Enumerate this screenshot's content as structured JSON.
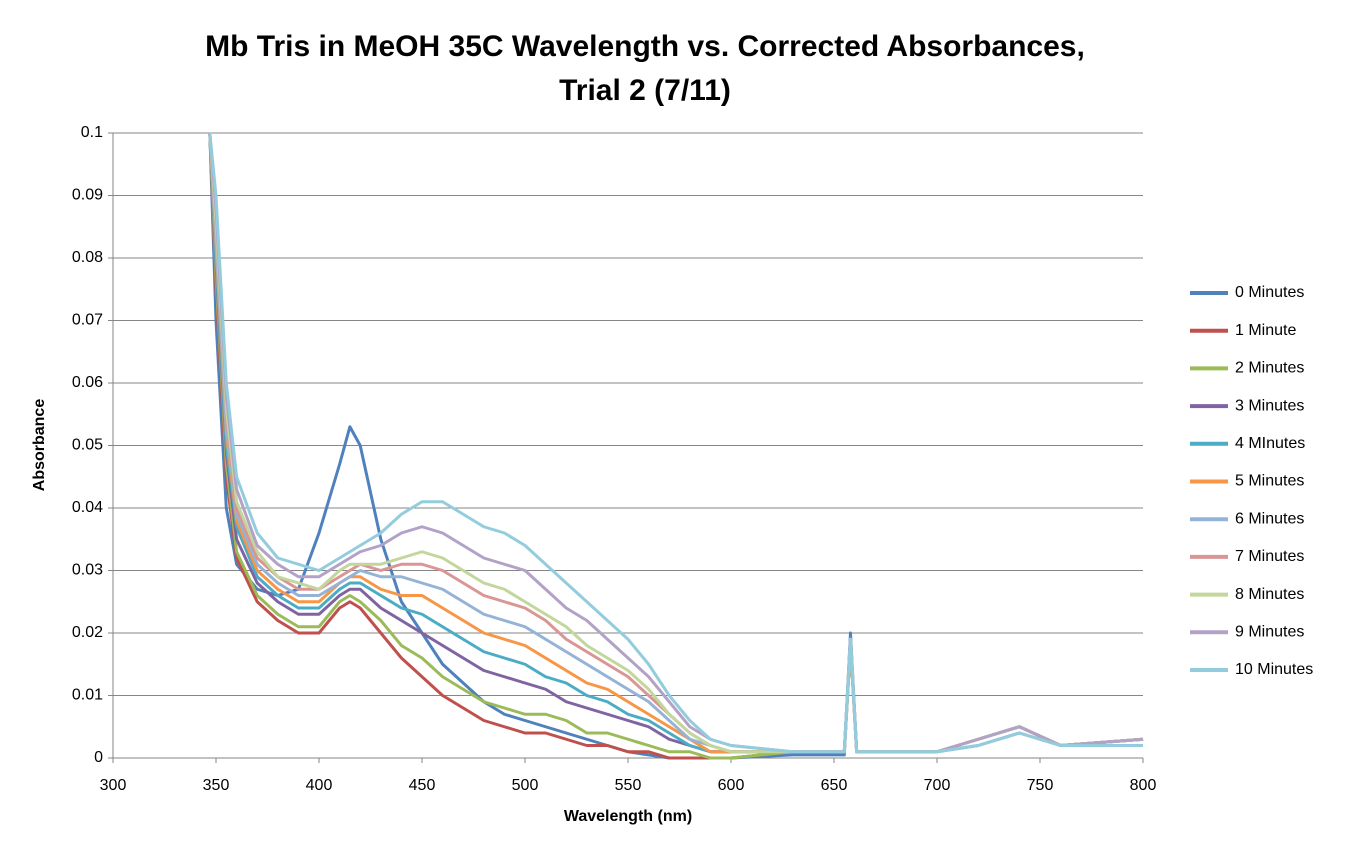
{
  "chart_data": {
    "type": "line",
    "title": "Mb Tris in MeOH 35C Wavelength vs. Corrected Absorbances,",
    "subtitle": "Trial 2 (7/11)",
    "x_label": "Wavelength (nm)",
    "y_label": "Absorbance",
    "xlim": [
      300,
      800
    ],
    "xticks": [
      300,
      350,
      400,
      450,
      500,
      550,
      600,
      650,
      700,
      750,
      800
    ],
    "ylim": [
      0,
      0.1
    ],
    "yticks": [
      0,
      0.01,
      0.02,
      0.03,
      0.04,
      0.05,
      0.06,
      0.07,
      0.08,
      0.09,
      0.1
    ],
    "grid": true,
    "legend": "right",
    "x": [
      347,
      350,
      355,
      360,
      370,
      380,
      390,
      400,
      410,
      415,
      420,
      430,
      440,
      450,
      460,
      470,
      480,
      490,
      500,
      510,
      520,
      530,
      540,
      550,
      560,
      570,
      580,
      590,
      600,
      630,
      655,
      658,
      661,
      700,
      720,
      740,
      760,
      800
    ],
    "series": [
      {
        "name": "0 Minutes",
        "color": "#4F81BD",
        "values": [
          0.1,
          0.07,
          0.04,
          0.031,
          0.027,
          0.026,
          0.027,
          0.036,
          0.047,
          0.053,
          0.05,
          0.035,
          0.025,
          0.02,
          0.015,
          0.012,
          0.009,
          0.007,
          0.006,
          0.005,
          0.004,
          0.003,
          0.002,
          0.001,
          0.0005,
          0,
          0,
          0,
          0,
          0.0005,
          0.0005,
          0.02,
          0.001,
          0.001,
          0.002,
          0.004,
          0.002,
          0.002
        ]
      },
      {
        "name": "1 Minute",
        "color": "#C0504D",
        "values": [
          0.1,
          0.075,
          0.045,
          0.032,
          0.025,
          0.022,
          0.02,
          0.02,
          0.024,
          0.025,
          0.024,
          0.02,
          0.016,
          0.013,
          0.01,
          0.008,
          0.006,
          0.005,
          0.004,
          0.004,
          0.003,
          0.002,
          0.002,
          0.001,
          0.001,
          0,
          0,
          0,
          0,
          0.001,
          0.001,
          0.018,
          0.001,
          0.001,
          0.003,
          0.005,
          0.002,
          0.003
        ]
      },
      {
        "name": "2 Minutes",
        "color": "#9BBB59",
        "values": [
          0.1,
          0.077,
          0.047,
          0.033,
          0.026,
          0.023,
          0.021,
          0.021,
          0.025,
          0.026,
          0.025,
          0.022,
          0.018,
          0.016,
          0.013,
          0.011,
          0.009,
          0.008,
          0.007,
          0.007,
          0.006,
          0.004,
          0.004,
          0.003,
          0.002,
          0.001,
          0.001,
          0,
          0,
          0.001,
          0.001,
          0.018,
          0.001,
          0.001,
          0.003,
          0.005,
          0.002,
          0.003
        ]
      },
      {
        "name": "3 Minutes",
        "color": "#8064A2",
        "values": [
          0.1,
          0.079,
          0.049,
          0.035,
          0.028,
          0.025,
          0.023,
          0.023,
          0.026,
          0.027,
          0.027,
          0.024,
          0.022,
          0.02,
          0.018,
          0.016,
          0.014,
          0.013,
          0.012,
          0.011,
          0.009,
          0.008,
          0.007,
          0.006,
          0.005,
          0.003,
          0.002,
          0.001,
          0.001,
          0.001,
          0.001,
          0.019,
          0.001,
          0.001,
          0.003,
          0.005,
          0.002,
          0.003
        ]
      },
      {
        "name": "4 MInutes",
        "color": "#4BACC6",
        "values": [
          0.1,
          0.08,
          0.05,
          0.037,
          0.029,
          0.026,
          0.024,
          0.024,
          0.027,
          0.028,
          0.028,
          0.026,
          0.024,
          0.023,
          0.021,
          0.019,
          0.017,
          0.016,
          0.015,
          0.013,
          0.012,
          0.01,
          0.009,
          0.007,
          0.006,
          0.004,
          0.002,
          0.001,
          0.001,
          0.001,
          0.001,
          0.019,
          0.001,
          0.001,
          0.003,
          0.005,
          0.002,
          0.003
        ]
      },
      {
        "name": "5 Minutes",
        "color": "#F79646",
        "values": [
          0.1,
          0.082,
          0.052,
          0.038,
          0.03,
          0.027,
          0.025,
          0.025,
          0.028,
          0.029,
          0.029,
          0.027,
          0.026,
          0.026,
          0.024,
          0.022,
          0.02,
          0.019,
          0.018,
          0.016,
          0.014,
          0.012,
          0.011,
          0.009,
          0.007,
          0.005,
          0.003,
          0.001,
          0.001,
          0.001,
          0.001,
          0.019,
          0.001,
          0.001,
          0.003,
          0.005,
          0.002,
          0.003
        ]
      },
      {
        "name": "6 Minutes",
        "color": "#95B3D7",
        "values": [
          0.1,
          0.083,
          0.053,
          0.039,
          0.031,
          0.028,
          0.026,
          0.026,
          0.028,
          0.029,
          0.03,
          0.029,
          0.029,
          0.028,
          0.027,
          0.025,
          0.023,
          0.022,
          0.021,
          0.019,
          0.017,
          0.015,
          0.013,
          0.011,
          0.009,
          0.006,
          0.003,
          0.002,
          0.001,
          0.001,
          0.001,
          0.019,
          0.001,
          0.001,
          0.003,
          0.005,
          0.002,
          0.003
        ]
      },
      {
        "name": "7 Minutes",
        "color": "#D99694",
        "values": [
          0.1,
          0.085,
          0.055,
          0.04,
          0.032,
          0.029,
          0.027,
          0.027,
          0.029,
          0.03,
          0.031,
          0.03,
          0.031,
          0.031,
          0.03,
          0.028,
          0.026,
          0.025,
          0.024,
          0.022,
          0.019,
          0.017,
          0.015,
          0.013,
          0.01,
          0.007,
          0.004,
          0.002,
          0.001,
          0.001,
          0.001,
          0.019,
          0.001,
          0.001,
          0.003,
          0.005,
          0.002,
          0.003
        ]
      },
      {
        "name": "8 Minutes",
        "color": "#C3D69B",
        "values": [
          0.1,
          0.086,
          0.056,
          0.041,
          0.033,
          0.029,
          0.028,
          0.027,
          0.03,
          0.031,
          0.031,
          0.031,
          0.032,
          0.033,
          0.032,
          0.03,
          0.028,
          0.027,
          0.025,
          0.023,
          0.021,
          0.018,
          0.016,
          0.014,
          0.011,
          0.007,
          0.004,
          0.002,
          0.001,
          0.001,
          0.001,
          0.019,
          0.001,
          0.001,
          0.003,
          0.005,
          0.002,
          0.003
        ]
      },
      {
        "name": "9 Minutes",
        "color": "#B3A2C7",
        "values": [
          0.1,
          0.088,
          0.058,
          0.043,
          0.034,
          0.031,
          0.029,
          0.029,
          0.031,
          0.032,
          0.033,
          0.034,
          0.036,
          0.037,
          0.036,
          0.034,
          0.032,
          0.031,
          0.03,
          0.027,
          0.024,
          0.022,
          0.019,
          0.016,
          0.013,
          0.009,
          0.005,
          0.003,
          0.002,
          0.001,
          0.001,
          0.019,
          0.001,
          0.001,
          0.003,
          0.005,
          0.002,
          0.003
        ]
      },
      {
        "name": "10 Minutes",
        "color": "#93CDDD",
        "values": [
          0.1,
          0.09,
          0.06,
          0.045,
          0.036,
          0.032,
          0.031,
          0.03,
          0.032,
          0.033,
          0.034,
          0.036,
          0.039,
          0.041,
          0.041,
          0.039,
          0.037,
          0.036,
          0.034,
          0.031,
          0.028,
          0.025,
          0.022,
          0.019,
          0.015,
          0.01,
          0.006,
          0.003,
          0.002,
          0.001,
          0.001,
          0.019,
          0.001,
          0.001,
          0.002,
          0.004,
          0.002,
          0.002
        ]
      }
    ]
  }
}
